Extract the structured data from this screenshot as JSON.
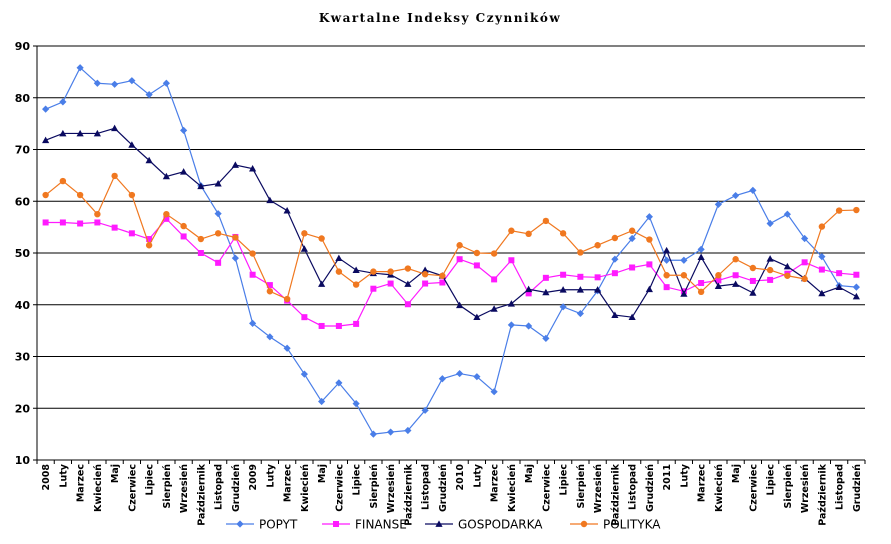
{
  "chart_data": {
    "type": "line",
    "title": "Kwartalne Indeksy Czynników",
    "xlabel": "",
    "ylabel": "",
    "ylim": [
      10,
      90
    ],
    "yticks": [
      10,
      20,
      30,
      40,
      50,
      60,
      70,
      80,
      90
    ],
    "grid": true,
    "legend_position": "bottom",
    "categories": [
      "2008",
      "Luty",
      "Marzec",
      "Kwiecień",
      "Maj",
      "Czerwiec",
      "Lipiec",
      "Sierpień",
      "Wrzesień",
      "Październik",
      "Listopad",
      "Grudzień",
      "2009",
      "Luty",
      "Marzec",
      "Kwiecień",
      "Maj",
      "Czerwiec",
      "Lipiec",
      "Sierpień",
      "Wrzesień",
      "Październik",
      "Listopad",
      "Grudzień",
      "2010",
      "Luty",
      "Marzec",
      "Kwiecień",
      "Maj",
      "Czerwiec",
      "Lipiec",
      "Sierpień",
      "Wrzesień",
      "Październik",
      "Listopad",
      "Grudzień",
      "2011",
      "Luty",
      "Marzec",
      "Kwiecień",
      "Maj",
      "Czerwiec",
      "Lipiec",
      "Sierpień",
      "Wrzesień",
      "Październik",
      "Listopad",
      "Grudzień"
    ],
    "series": [
      {
        "name": "POPYT",
        "color": "#4a7ee8",
        "marker": "diamond",
        "values": [
          77.8,
          79.2,
          85.8,
          82.8,
          82.6,
          83.3,
          80.6,
          82.8,
          73.7,
          63.0,
          57.6,
          49.0,
          36.4,
          33.8,
          31.6,
          26.6,
          21.3,
          24.9,
          20.9,
          15.0,
          15.4,
          15.7,
          19.6,
          25.7,
          26.7,
          26.1,
          23.2,
          36.1,
          35.9,
          33.5,
          39.6,
          38.3,
          42.7,
          48.8,
          52.8,
          57.0,
          48.6,
          48.6,
          50.7,
          59.4,
          61.1,
          62.1,
          55.7,
          57.5,
          52.8,
          49.3,
          43.7,
          43.4
        ]
      },
      {
        "name": "FINANSE",
        "color": "#ff1aff",
        "marker": "square",
        "values": [
          55.9,
          55.9,
          55.7,
          55.9,
          54.9,
          53.8,
          52.7,
          56.6,
          53.2,
          50.0,
          48.1,
          53.1,
          45.8,
          43.8,
          40.8,
          37.6,
          35.9,
          35.9,
          36.3,
          43.1,
          44.1,
          40.1,
          44.1,
          44.3,
          48.8,
          47.6,
          44.9,
          48.6,
          42.2,
          45.2,
          45.8,
          45.4,
          45.3,
          46.1,
          47.2,
          47.8,
          43.4,
          42.6,
          44.2,
          44.7,
          45.7,
          44.6,
          44.8,
          46.0,
          48.2,
          46.8,
          46.1,
          45.8
        ]
      },
      {
        "name": "GOSPODARKA",
        "color": "#0a0a60",
        "marker": "triangle",
        "values": [
          71.8,
          73.1,
          73.1,
          73.1,
          74.1,
          70.9,
          67.9,
          64.8,
          65.7,
          62.9,
          63.4,
          67.0,
          66.3,
          60.2,
          58.2,
          50.8,
          44.0,
          49.0,
          46.7,
          46.1,
          45.8,
          44.0,
          46.7,
          45.6,
          39.9,
          37.6,
          39.2,
          40.2,
          43.0,
          42.4,
          42.9,
          42.9,
          42.9,
          38.0,
          37.6,
          43.0,
          50.5,
          42.1,
          49.2,
          43.6,
          44.0,
          42.3,
          48.9,
          47.4,
          45.1,
          42.2,
          43.4,
          41.6
        ]
      },
      {
        "name": "POLITYKA",
        "color": "#f07820",
        "marker": "circle",
        "values": [
          61.2,
          63.9,
          61.2,
          57.5,
          64.9,
          61.2,
          51.5,
          57.5,
          55.2,
          52.7,
          53.8,
          53.0,
          49.9,
          42.6,
          41.1,
          53.8,
          52.8,
          46.4,
          43.9,
          46.4,
          46.4,
          47.0,
          45.9,
          45.6,
          51.5,
          50.0,
          49.9,
          54.3,
          53.7,
          56.2,
          53.8,
          50.1,
          51.5,
          52.9,
          54.3,
          52.6,
          45.7,
          45.7,
          42.5,
          45.7,
          48.8,
          47.1,
          46.7,
          45.6,
          45.0,
          55.1,
          58.2,
          58.3
        ]
      }
    ]
  }
}
